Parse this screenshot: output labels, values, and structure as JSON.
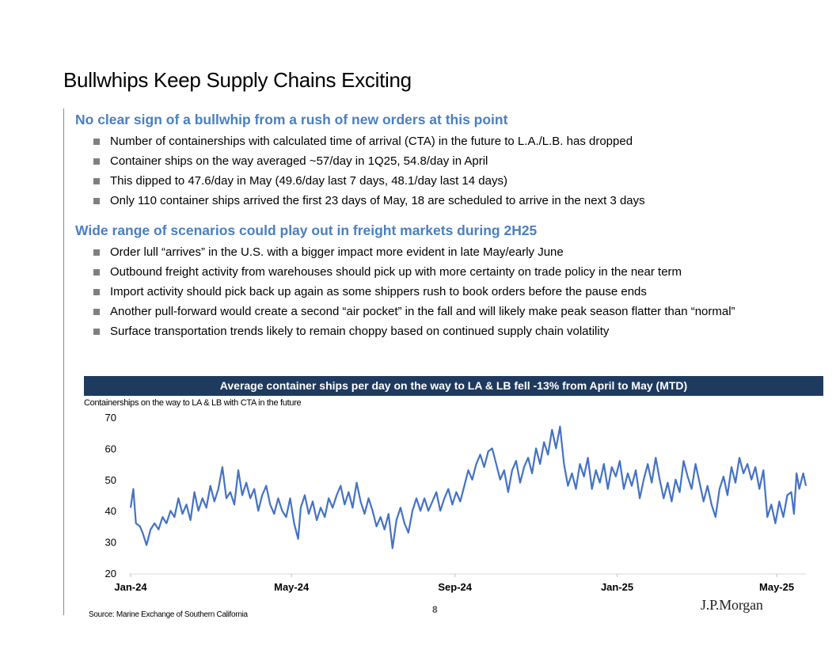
{
  "title": "Bullwhips Keep Supply Chains Exciting",
  "sections": [
    {
      "heading": "No clear sign of a bullwhip from a rush of new orders at this point",
      "bullets": [
        "Number of containerships with calculated time of arrival (CTA) in the future to L.A./L.B. has dropped",
        "Container ships on the way averaged ~57/day in 1Q25, 54.8/day in April",
        "This dipped to 47.6/day in May (49.6/day last 7 days, 48.1/day last 14 days)",
        "Only 110 container ships arrived the first 23 days of May, 18 are scheduled to arrive in the next 3 days"
      ]
    },
    {
      "heading": "Wide range of scenarios could play out in freight markets during 2H25",
      "bullets": [
        "Order lull “arrives” in the U.S. with a bigger impact more evident in late May/early June",
        "Outbound freight activity from warehouses should pick up with more certainty on trade policy in the near term",
        "Import activity should pick back up again as some shippers rush to book orders before the pause ends",
        "Another pull-forward would create a second “air pocket” in the fall and will likely make peak season flatter than “normal”",
        "Surface transportation trends likely to remain choppy based on continued supply chain volatility"
      ]
    }
  ],
  "chart_banner": "Average container ships per day on the way to LA & LB fell -13% from April to May (MTD)",
  "chart_subtitle": "Containerships on the way to LA & LB with CTA in the future",
  "source": "Source: Marine Exchange of Southern California",
  "page_number": "8",
  "logo_text": "J.P.Morgan",
  "colors": {
    "heading": "#4a7fc0",
    "banner": "#1f3a5f",
    "line": "#4472c4",
    "bullet": "#7f7f7f"
  },
  "chart_data": {
    "type": "line",
    "title": "Average container ships per day on the way to LA & LB fell -13% from April to May (MTD)",
    "ylabel": "Containerships on the way to LA & LB with CTA in the future",
    "xlabel": "",
    "ylim": [
      20,
      70
    ],
    "yticks": [
      20,
      30,
      40,
      50,
      60,
      70
    ],
    "xticks": [
      "Jan-24",
      "May-24",
      "Sep-24",
      "Jan-25",
      "May-25"
    ],
    "xlim": [
      "2024-01-01",
      "2025-05-23"
    ],
    "grid": false,
    "series": [
      {
        "points": [
          [
            "2024-01-01",
            41
          ],
          [
            "2024-01-03",
            47
          ],
          [
            "2024-01-05",
            36
          ],
          [
            "2024-01-08",
            35
          ],
          [
            "2024-01-10",
            33
          ],
          [
            "2024-01-13",
            29
          ],
          [
            "2024-01-16",
            34
          ],
          [
            "2024-01-19",
            36
          ],
          [
            "2024-01-22",
            34
          ],
          [
            "2024-01-25",
            38
          ],
          [
            "2024-01-28",
            36
          ],
          [
            "2024-01-31",
            40
          ],
          [
            "2024-02-03",
            38
          ],
          [
            "2024-02-06",
            44
          ],
          [
            "2024-02-09",
            39
          ],
          [
            "2024-02-12",
            42
          ],
          [
            "2024-02-15",
            37
          ],
          [
            "2024-02-18",
            46
          ],
          [
            "2024-02-21",
            40
          ],
          [
            "2024-02-24",
            44
          ],
          [
            "2024-02-27",
            41
          ],
          [
            "2024-03-01",
            48
          ],
          [
            "2024-03-04",
            43
          ],
          [
            "2024-03-07",
            47
          ],
          [
            "2024-03-10",
            54
          ],
          [
            "2024-03-13",
            44
          ],
          [
            "2024-03-16",
            46
          ],
          [
            "2024-03-19",
            42
          ],
          [
            "2024-03-22",
            53
          ],
          [
            "2024-03-25",
            45
          ],
          [
            "2024-03-28",
            49
          ],
          [
            "2024-03-31",
            44
          ],
          [
            "2024-04-03",
            47
          ],
          [
            "2024-04-06",
            40
          ],
          [
            "2024-04-09",
            45
          ],
          [
            "2024-04-12",
            48
          ],
          [
            "2024-04-15",
            42
          ],
          [
            "2024-04-18",
            39
          ],
          [
            "2024-04-21",
            44
          ],
          [
            "2024-04-24",
            40
          ],
          [
            "2024-04-27",
            38
          ],
          [
            "2024-04-30",
            44
          ],
          [
            "2024-05-03",
            36
          ],
          [
            "2024-05-06",
            31
          ],
          [
            "2024-05-08",
            41
          ],
          [
            "2024-05-11",
            45
          ],
          [
            "2024-05-14",
            39
          ],
          [
            "2024-05-17",
            43
          ],
          [
            "2024-05-20",
            37
          ],
          [
            "2024-05-23",
            41
          ],
          [
            "2024-05-26",
            38
          ],
          [
            "2024-05-29",
            44
          ],
          [
            "2024-06-01",
            41
          ],
          [
            "2024-06-04",
            45
          ],
          [
            "2024-06-07",
            48
          ],
          [
            "2024-06-10",
            42
          ],
          [
            "2024-06-13",
            46
          ],
          [
            "2024-06-16",
            41
          ],
          [
            "2024-06-19",
            49
          ],
          [
            "2024-06-22",
            43
          ],
          [
            "2024-06-25",
            39
          ],
          [
            "2024-06-28",
            44
          ],
          [
            "2024-07-01",
            40
          ],
          [
            "2024-07-04",
            35
          ],
          [
            "2024-07-07",
            38
          ],
          [
            "2024-07-10",
            34
          ],
          [
            "2024-07-13",
            39
          ],
          [
            "2024-07-16",
            28
          ],
          [
            "2024-07-19",
            37
          ],
          [
            "2024-07-22",
            41
          ],
          [
            "2024-07-25",
            36
          ],
          [
            "2024-07-28",
            33
          ],
          [
            "2024-07-31",
            40
          ],
          [
            "2024-08-03",
            44
          ],
          [
            "2024-08-06",
            40
          ],
          [
            "2024-08-09",
            44
          ],
          [
            "2024-08-12",
            40
          ],
          [
            "2024-08-15",
            43
          ],
          [
            "2024-08-18",
            46
          ],
          [
            "2024-08-21",
            40
          ],
          [
            "2024-08-24",
            44
          ],
          [
            "2024-08-27",
            47
          ],
          [
            "2024-08-30",
            42
          ],
          [
            "2024-09-02",
            46
          ],
          [
            "2024-09-05",
            43
          ],
          [
            "2024-09-08",
            48
          ],
          [
            "2024-09-11",
            53
          ],
          [
            "2024-09-14",
            50
          ],
          [
            "2024-09-17",
            55
          ],
          [
            "2024-09-20",
            58
          ],
          [
            "2024-09-23",
            54
          ],
          [
            "2024-09-26",
            59
          ],
          [
            "2024-09-29",
            60
          ],
          [
            "2024-10-02",
            55
          ],
          [
            "2024-10-05",
            50
          ],
          [
            "2024-10-08",
            53
          ],
          [
            "2024-10-11",
            46
          ],
          [
            "2024-10-14",
            53
          ],
          [
            "2024-10-17",
            56
          ],
          [
            "2024-10-20",
            49
          ],
          [
            "2024-10-23",
            54
          ],
          [
            "2024-10-26",
            57
          ],
          [
            "2024-10-29",
            52
          ],
          [
            "2024-11-01",
            60
          ],
          [
            "2024-11-04",
            55
          ],
          [
            "2024-11-07",
            62
          ],
          [
            "2024-11-10",
            58
          ],
          [
            "2024-11-13",
            66
          ],
          [
            "2024-11-16",
            60
          ],
          [
            "2024-11-19",
            67
          ],
          [
            "2024-11-22",
            55
          ],
          [
            "2024-11-25",
            48
          ],
          [
            "2024-11-28",
            52
          ],
          [
            "2024-12-01",
            47
          ],
          [
            "2024-12-04",
            55
          ],
          [
            "2024-12-07",
            51
          ],
          [
            "2024-12-10",
            57
          ],
          [
            "2024-12-13",
            47
          ],
          [
            "2024-12-16",
            53
          ],
          [
            "2024-12-19",
            49
          ],
          [
            "2024-12-22",
            55
          ],
          [
            "2024-12-25",
            47
          ],
          [
            "2024-12-28",
            54
          ],
          [
            "2024-12-31",
            51
          ],
          [
            "2025-01-03",
            56
          ],
          [
            "2025-01-06",
            47
          ],
          [
            "2025-01-09",
            52
          ],
          [
            "2025-01-12",
            48
          ],
          [
            "2025-01-15",
            53
          ],
          [
            "2025-01-18",
            44
          ],
          [
            "2025-01-21",
            50
          ],
          [
            "2025-01-24",
            55
          ],
          [
            "2025-01-27",
            49
          ],
          [
            "2025-01-30",
            57
          ],
          [
            "2025-02-02",
            50
          ],
          [
            "2025-02-05",
            44
          ],
          [
            "2025-02-08",
            49
          ],
          [
            "2025-02-11",
            43
          ],
          [
            "2025-02-14",
            50
          ],
          [
            "2025-02-17",
            46
          ],
          [
            "2025-02-20",
            56
          ],
          [
            "2025-02-23",
            51
          ],
          [
            "2025-02-26",
            47
          ],
          [
            "2025-03-01",
            55
          ],
          [
            "2025-03-04",
            49
          ],
          [
            "2025-03-07",
            43
          ],
          [
            "2025-03-10",
            48
          ],
          [
            "2025-03-13",
            42
          ],
          [
            "2025-03-16",
            38
          ],
          [
            "2025-03-19",
            47
          ],
          [
            "2025-03-22",
            51
          ],
          [
            "2025-03-25",
            45
          ],
          [
            "2025-03-28",
            54
          ],
          [
            "2025-03-31",
            49
          ],
          [
            "2025-04-03",
            57
          ],
          [
            "2025-04-06",
            52
          ],
          [
            "2025-04-09",
            55
          ],
          [
            "2025-04-12",
            50
          ],
          [
            "2025-04-15",
            54
          ],
          [
            "2025-04-18",
            47
          ],
          [
            "2025-04-21",
            53
          ],
          [
            "2025-04-24",
            38
          ],
          [
            "2025-04-27",
            42
          ],
          [
            "2025-04-30",
            36
          ],
          [
            "2025-05-03",
            43
          ],
          [
            "2025-05-06",
            38
          ],
          [
            "2025-05-09",
            45
          ],
          [
            "2025-05-12",
            46
          ],
          [
            "2025-05-14",
            39
          ],
          [
            "2025-05-16",
            52
          ],
          [
            "2025-05-18",
            47
          ],
          [
            "2025-05-21",
            52
          ],
          [
            "2025-05-23",
            48
          ]
        ]
      }
    ]
  }
}
